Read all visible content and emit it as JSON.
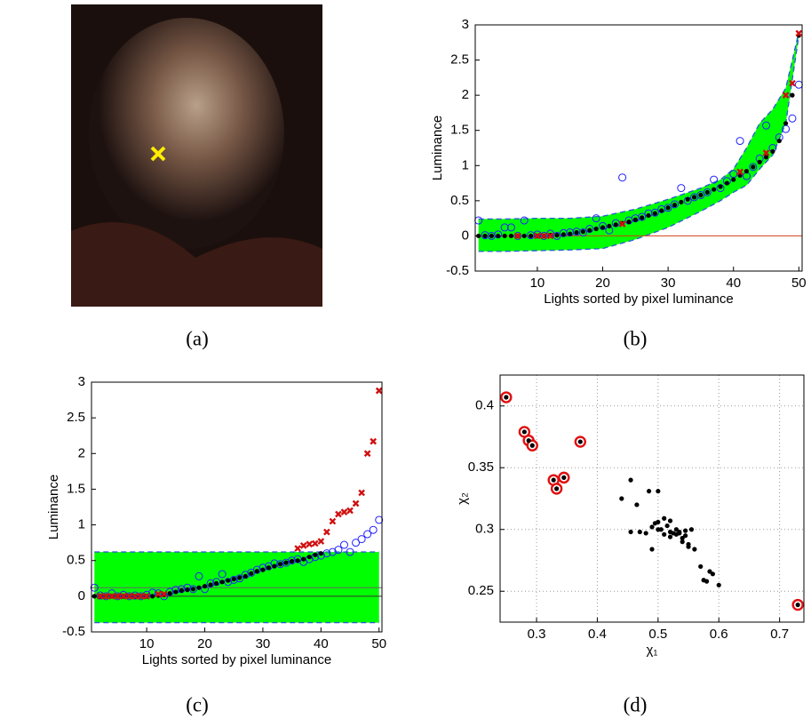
{
  "chart_data": [
    {
      "type": "image",
      "caption": "(a)"
    },
    {
      "type": "scatter",
      "caption": "(b)",
      "ylabel": "Luminance",
      "xlabel": "Lights sorted by pixel luminance",
      "xlim": [
        0.5,
        50.5
      ],
      "ylim": [
        -0.5,
        3
      ],
      "xticks": [
        10,
        20,
        30,
        40,
        50
      ],
      "yticks": [
        -0.5,
        0,
        0.5,
        1,
        1.5,
        2,
        2.5,
        3
      ],
      "grid": false,
      "band": {
        "color": "#00ff00",
        "edge_color": "#2a5bd7",
        "x": [
          1,
          5,
          10,
          15,
          20,
          25,
          30,
          35,
          38,
          40,
          42,
          44,
          46,
          48,
          50
        ],
        "upper": [
          0.24,
          0.24,
          0.25,
          0.25,
          0.28,
          0.38,
          0.52,
          0.68,
          0.8,
          0.95,
          1.25,
          1.6,
          1.8,
          2.1,
          2.9
        ],
        "lower": [
          -0.22,
          -0.22,
          -0.21,
          -0.2,
          -0.18,
          -0.05,
          0.12,
          0.35,
          0.5,
          0.62,
          0.72,
          0.95,
          1.15,
          1.6,
          2.85
        ]
      },
      "hlines": [
        {
          "value": 0,
          "color": "#d04010"
        }
      ],
      "x": [
        1,
        2,
        3,
        4,
        5,
        6,
        7,
        8,
        9,
        10,
        11,
        12,
        13,
        14,
        15,
        16,
        17,
        18,
        19,
        20,
        21,
        22,
        23,
        24,
        25,
        26,
        27,
        28,
        29,
        30,
        31,
        32,
        33,
        34,
        35,
        36,
        37,
        38,
        39,
        40,
        41,
        42,
        43,
        44,
        45,
        46,
        47,
        48,
        49,
        50
      ],
      "series": [
        {
          "marker": "circle",
          "color": "#2020ff",
          "values": [
            0.22,
            0.01,
            0.0,
            0.02,
            0.12,
            0.12,
            0.0,
            0.22,
            0.01,
            0.02,
            0.0,
            0.03,
            0.0,
            0.04,
            0.05,
            0.06,
            0.05,
            0.1,
            0.25,
            0.14,
            0.08,
            0.18,
            0.83,
            0.22,
            0.25,
            0.27,
            0.32,
            0.33,
            0.38,
            0.4,
            0.45,
            0.68,
            0.5,
            0.55,
            0.58,
            0.62,
            0.8,
            0.68,
            0.78,
            0.88,
            1.35,
            0.85,
            0.98,
            1.1,
            1.57,
            1.25,
            1.4,
            1.52,
            1.67,
            2.15
          ]
        },
        {
          "marker": "dot",
          "color": "#000000",
          "values": [
            0,
            0,
            0,
            0,
            0,
            0,
            0,
            0,
            0,
            0,
            0,
            0.01,
            0.01,
            0.02,
            0.03,
            0.05,
            0.06,
            0.08,
            0.1,
            0.12,
            0.14,
            0.16,
            0.18,
            0.2,
            0.23,
            0.26,
            0.29,
            0.32,
            0.36,
            0.4,
            0.44,
            0.48,
            0.52,
            0.55,
            0.58,
            0.62,
            0.66,
            0.7,
            0.75,
            0.8,
            0.86,
            0.92,
            0.98,
            1.05,
            1.12,
            1.2,
            1.35,
            1.6,
            2.0,
            2.85
          ]
        },
        {
          "marker": "x",
          "color": "#d01010",
          "values": [
            null,
            null,
            null,
            null,
            null,
            null,
            0,
            null,
            null,
            0,
            0,
            0,
            null,
            null,
            null,
            null,
            null,
            null,
            null,
            null,
            null,
            null,
            0.17,
            null,
            null,
            null,
            null,
            null,
            null,
            null,
            null,
            null,
            null,
            null,
            null,
            null,
            null,
            null,
            null,
            null,
            0.91,
            null,
            null,
            null,
            1.18,
            null,
            null,
            2.0,
            2.17,
            2.88
          ]
        }
      ]
    },
    {
      "type": "scatter",
      "caption": "(c)",
      "ylabel": "Luminance",
      "xlabel": "Lights sorted by pixel luminance",
      "xlim": [
        0.5,
        50.5
      ],
      "ylim": [
        -0.5,
        3
      ],
      "xticks": [
        10,
        20,
        30,
        40,
        50
      ],
      "yticks": [
        -0.5,
        0,
        0.5,
        1,
        1.5,
        2,
        2.5,
        3
      ],
      "grid": false,
      "band": {
        "color": "#00ff00",
        "edge_color": "#2a5bd7",
        "x": [
          1,
          50
        ],
        "upper": [
          0.62,
          0.62
        ],
        "lower": [
          -0.37,
          -0.37
        ]
      },
      "hlines": [
        {
          "value": 0.12,
          "color": "#666666"
        },
        {
          "value": 0,
          "color": "#333333"
        }
      ],
      "x": [
        1,
        2,
        3,
        4,
        5,
        6,
        7,
        8,
        9,
        10,
        11,
        12,
        13,
        14,
        15,
        16,
        17,
        18,
        19,
        20,
        21,
        22,
        23,
        24,
        25,
        26,
        27,
        28,
        29,
        30,
        31,
        32,
        33,
        34,
        35,
        36,
        37,
        38,
        39,
        40,
        41,
        42,
        43,
        44,
        45,
        46,
        47,
        48,
        49,
        50
      ],
      "series": [
        {
          "marker": "circle",
          "color": "#2020ff",
          "values": [
            0.12,
            0.01,
            0.0,
            0.04,
            0.0,
            0.02,
            0.0,
            0.01,
            0.0,
            0.02,
            0.05,
            0.04,
            0.0,
            0.06,
            0.09,
            0.1,
            0.12,
            0.1,
            0.28,
            0.1,
            0.18,
            0.2,
            0.31,
            0.2,
            0.23,
            0.25,
            0.3,
            0.33,
            0.37,
            0.4,
            0.42,
            0.46,
            0.45,
            0.47,
            0.5,
            0.52,
            0.48,
            0.52,
            0.55,
            0.57,
            0.6,
            0.62,
            0.65,
            0.72,
            0.62,
            0.75,
            0.8,
            0.87,
            0.93,
            1.07
          ]
        },
        {
          "marker": "dot",
          "color": "#000000",
          "values": [
            0,
            0,
            0,
            0,
            0,
            0,
            0,
            0,
            0,
            0,
            0,
            0.01,
            0.02,
            0.04,
            0.06,
            0.08,
            0.09,
            0.1,
            0.12,
            0.14,
            0.16,
            0.18,
            0.2,
            0.22,
            0.24,
            0.26,
            0.28,
            0.32,
            0.35,
            0.37,
            0.4,
            0.42,
            0.45,
            0.47,
            0.49,
            0.5,
            0.52,
            0.55,
            0.58,
            0.6,
            null,
            null,
            null,
            null,
            null,
            null,
            null,
            null,
            null,
            null
          ]
        },
        {
          "marker": "x",
          "color": "#d01010",
          "values": [
            null,
            0,
            0,
            0,
            0,
            0,
            0,
            0,
            0,
            0,
            null,
            0.03,
            0.03,
            null,
            null,
            null,
            null,
            null,
            null,
            null,
            null,
            null,
            null,
            null,
            null,
            null,
            null,
            null,
            null,
            null,
            null,
            null,
            null,
            null,
            null,
            0.67,
            0.71,
            0.73,
            0.74,
            0.77,
            0.9,
            1.05,
            1.15,
            1.18,
            1.2,
            1.3,
            1.45,
            2.0,
            2.17,
            2.88
          ]
        }
      ]
    },
    {
      "type": "scatter",
      "caption": "(d)",
      "xlabel": "χ₁",
      "ylabel": "χ₂",
      "xlim": [
        0.24,
        0.74
      ],
      "ylim": [
        0.225,
        0.425
      ],
      "xticks": [
        0.3,
        0.4,
        0.5,
        0.6,
        0.7
      ],
      "yticks": [
        0.25,
        0.3,
        0.35,
        0.4
      ],
      "grid": true,
      "series": [
        {
          "marker": "dot",
          "color": "#000000",
          "x": [
            0.44,
            0.455,
            0.465,
            0.485,
            0.5,
            0.455,
            0.47,
            0.49,
            0.495,
            0.5,
            0.505,
            0.51,
            0.515,
            0.52,
            0.525,
            0.53,
            0.535,
            0.54,
            0.545,
            0.55,
            0.555,
            0.49,
            0.5,
            0.51,
            0.52,
            0.53,
            0.54,
            0.55,
            0.56,
            0.57,
            0.58,
            0.585,
            0.59,
            0.6,
            0.545,
            0.535,
            0.52,
            0.575,
            0.48
          ],
          "values": [
            0.325,
            0.34,
            0.32,
            0.331,
            0.331,
            0.298,
            0.298,
            0.302,
            0.305,
            0.306,
            0.3,
            0.309,
            0.303,
            0.298,
            0.297,
            0.296,
            0.298,
            0.293,
            0.295,
            0.288,
            0.3,
            0.284,
            0.3,
            0.296,
            0.294,
            0.3,
            0.29,
            0.286,
            0.284,
            0.27,
            0.258,
            0.266,
            0.264,
            0.255,
            0.299,
            0.297,
            0.307,
            0.259,
            0.297
          ]
        },
        {
          "marker": "ring",
          "color": "#e01010",
          "x": [
            0.25,
            0.28,
            0.287,
            0.293,
            0.372,
            0.328,
            0.333,
            0.345,
            0.73
          ],
          "values": [
            0.407,
            0.379,
            0.372,
            0.368,
            0.371,
            0.34,
            0.333,
            0.342,
            0.239
          ]
        }
      ]
    }
  ]
}
